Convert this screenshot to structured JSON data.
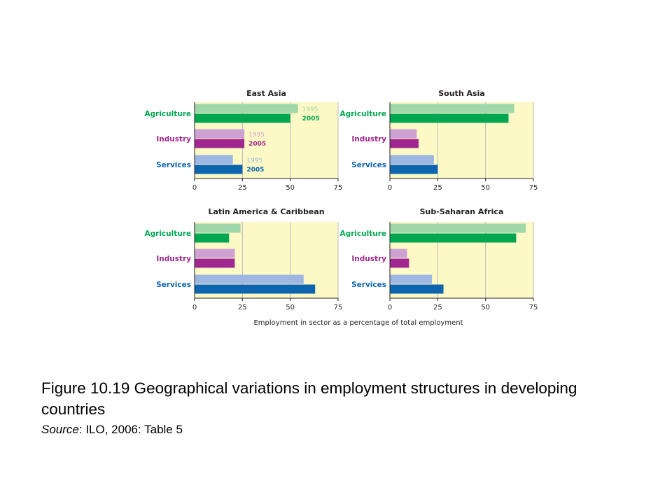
{
  "chart_data": {
    "type": "bar",
    "orientation": "horizontal",
    "years": [
      "1995",
      "2005"
    ],
    "categories": [
      "Agriculture",
      "Industry",
      "Services"
    ],
    "xlim": [
      0,
      75
    ],
    "xticks": [
      "0",
      "25",
      "50",
      "75"
    ],
    "xlabel": "Employment in sector as a percentage of total employment",
    "colors": {
      "plot_background": "#fdf9c6",
      "gridline": "#b9b9b9",
      "Agriculture": {
        "1995": "#9fd6aa",
        "2005": "#00a650"
      },
      "Industry": {
        "1995": "#cda2d3",
        "2005": "#a0278f"
      },
      "Services": {
        "1995": "#9db7e2",
        "2005": "#0d65b0"
      }
    },
    "panels": [
      {
        "title": "East Asia",
        "series": [
          {
            "name": "1995",
            "values": [
              54,
              26,
              20
            ]
          },
          {
            "name": "2005",
            "values": [
              50,
              26,
              25
            ]
          }
        ]
      },
      {
        "title": "South Asia",
        "series": [
          {
            "name": "1995",
            "values": [
              65,
              14,
              23
            ]
          },
          {
            "name": "2005",
            "values": [
              62,
              15,
              25
            ]
          }
        ]
      },
      {
        "title": "Latin America & Caribbean",
        "series": [
          {
            "name": "1995",
            "values": [
              24,
              21,
              57
            ]
          },
          {
            "name": "2005",
            "values": [
              18,
              21,
              63
            ]
          }
        ]
      },
      {
        "title": "Sub-Saharan Africa",
        "series": [
          {
            "name": "1995",
            "values": [
              71,
              9,
              22
            ]
          },
          {
            "name": "2005",
            "values": [
              66,
              10,
              28
            ]
          }
        ]
      }
    ]
  },
  "caption": {
    "title": "Figure 10.19 Geographical variations in employment structures in developing countries",
    "source_label": "Source",
    "source_text": ": ILO, 2006: Table 5"
  }
}
